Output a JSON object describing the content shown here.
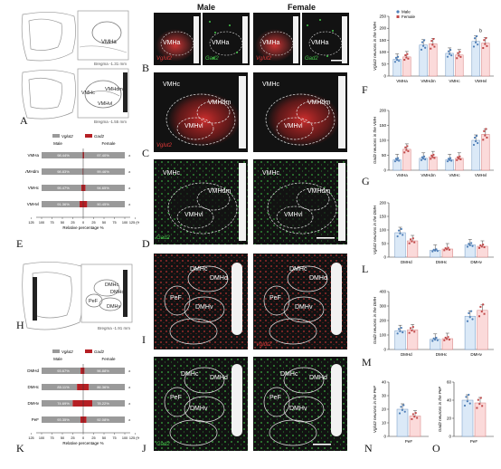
{
  "column_titles": {
    "male": "Male",
    "female": "Female"
  },
  "panel_letters": [
    "A",
    "B",
    "C",
    "D",
    "E",
    "F",
    "G",
    "H",
    "I",
    "J",
    "K",
    "L",
    "M",
    "N",
    "O"
  ],
  "panel_A": {
    "top": {
      "region": "VMHa",
      "bregma": "Bregma -1.31 mm"
    },
    "bottom": {
      "regions": [
        "VMHc",
        "VMHdm",
        "VMHvl"
      ],
      "bregma": "Bregma -1.55 mm"
    }
  },
  "panel_B": {
    "images": [
      {
        "region": "VMHa",
        "marker": "Vglut2",
        "color": "#e23a3a"
      },
      {
        "region": "VMHa",
        "marker": "Gad2",
        "color": "#44c84a"
      },
      {
        "region": "VMHa",
        "marker": "Vglut2",
        "color": "#e23a3a"
      },
      {
        "region": "VMHa",
        "marker": "Gad2",
        "color": "#44c84a"
      }
    ]
  },
  "panel_C": {
    "regions": [
      "VMHc",
      "VMHdm",
      "VMHvl"
    ],
    "marker": "Vglut2"
  },
  "panel_D": {
    "regions": [
      "VMHc",
      "VMHdm",
      "VMHvl"
    ],
    "marker": "Gad2"
  },
  "panel_E": {
    "legend": [
      {
        "label": "Vglut2",
        "color": "#9a9a9a"
      },
      {
        "label": "Gad2",
        "color": "#b51f24"
      }
    ],
    "side_labels": {
      "left": "Male",
      "right": "Female"
    },
    "rows": [
      {
        "region": "VMHa",
        "male": "98.44%",
        "female": "97.40%"
      },
      {
        "region": "VMHdm",
        "male": "98.83%",
        "female": "99.46%"
      },
      {
        "region": "VMHc",
        "male": "95.47%",
        "female": "94.65%"
      },
      {
        "region": "VMHvl",
        "male": "91.36%",
        "female": "90.45%"
      }
    ],
    "ticks": [
      "125",
      "100",
      "75",
      "50",
      "25",
      "0",
      "25",
      "50",
      "75",
      "100",
      "125 (%)"
    ],
    "xlabel": "Relative percentage %"
  },
  "panel_H": {
    "regions": [
      "DMHc",
      "DMHd",
      "PeF",
      "DMHv"
    ],
    "bregma": "Bregma -1.91 mm"
  },
  "panel_I": {
    "regions": [
      "DMHc",
      "DMHd",
      "PeF",
      "DMHv"
    ],
    "marker": "Vglut2"
  },
  "panel_J": {
    "regions": [
      "DMHc",
      "DMHd",
      "PeF",
      "DMHv"
    ],
    "marker": "Gad2"
  },
  "panel_K": {
    "legend": [
      {
        "label": "Vglut2",
        "color": "#9a9a9a"
      },
      {
        "label": "Gad2",
        "color": "#b51f24"
      }
    ],
    "side_labels": {
      "left": "Male",
      "right": "Female"
    },
    "rows": [
      {
        "region": "DMHd",
        "male": "93.67%",
        "female": "96.88%"
      },
      {
        "region": "DMHc",
        "male": "85.11%",
        "female": "86.36%"
      },
      {
        "region": "DMHv",
        "male": "74.69%",
        "female": "78.22%"
      },
      {
        "region": "PeF",
        "male": "93.35%",
        "female": "92.08%"
      }
    ],
    "ticks": [
      "125",
      "100",
      "75",
      "50",
      "25",
      "0",
      "25",
      "50",
      "75",
      "100",
      "125 (%)"
    ],
    "xlabel": "Relative percentage %"
  },
  "chart_data": [
    {
      "panel": "F",
      "type": "bar",
      "ylabel": "Vglut2 neurons in the VMH",
      "ylim": [
        0,
        250
      ],
      "yticks": [
        "0",
        "50",
        "100",
        "150",
        "200",
        "250"
      ],
      "categories": [
        "VMHa",
        "VMHdm",
        "VMHc",
        "VMHvl"
      ],
      "legend": [
        "Male",
        "Female"
      ],
      "series": [
        {
          "name": "Male",
          "values": [
            70,
            130,
            95,
            145
          ],
          "color": "#dbe9f7"
        },
        {
          "name": "Female",
          "values": [
            80,
            135,
            88,
            138
          ],
          "color": "#fbdada"
        }
      ],
      "annotations": [
        {
          "category": "VMHvl",
          "text": "b"
        }
      ]
    },
    {
      "panel": "G",
      "type": "bar",
      "ylabel": "Gad2 neurons in the VMH",
      "ylim": [
        0,
        200
      ],
      "yticks": [
        "0",
        "50",
        "100",
        "150",
        "200"
      ],
      "categories": [
        "VMHa",
        "VMHdm",
        "VMHc",
        "VMHvl"
      ],
      "series": [
        {
          "name": "Male",
          "values": [
            35,
            40,
            35,
            100
          ],
          "color": "#dbe9f7"
        },
        {
          "name": "Female",
          "values": [
            70,
            45,
            40,
            120
          ],
          "color": "#fbdada"
        }
      ]
    },
    {
      "panel": "L",
      "type": "bar",
      "ylabel": "Vglut2 neurons in the DMH",
      "ylim": [
        0,
        200
      ],
      "yticks": [
        "0",
        "50",
        "100",
        "150",
        "200"
      ],
      "categories": [
        "DMHd",
        "DMHc",
        "DMHv"
      ],
      "series": [
        {
          "name": "Male",
          "values": [
            90,
            25,
            45
          ],
          "color": "#dbe9f7"
        },
        {
          "name": "Female",
          "values": [
            60,
            30,
            40
          ],
          "color": "#fbdada"
        }
      ]
    },
    {
      "panel": "M",
      "type": "bar",
      "ylabel": "Gad2 neurons in the DMH",
      "ylim": [
        0,
        400
      ],
      "yticks": [
        "0",
        "100",
        "200",
        "300",
        "400"
      ],
      "categories": [
        "DMHd",
        "DMHc",
        "DMHv"
      ],
      "series": [
        {
          "name": "Male",
          "values": [
            130,
            70,
            230
          ],
          "color": "#dbe9f7"
        },
        {
          "name": "Female",
          "values": [
            135,
            75,
            270
          ],
          "color": "#fbdada"
        }
      ]
    },
    {
      "panel": "N",
      "type": "bar",
      "ylabel": "Vglut2 neurons in the PeF",
      "ylim": [
        0,
        40
      ],
      "yticks": [
        "0",
        "10",
        "20",
        "30",
        "40"
      ],
      "categories": [
        "PeF"
      ],
      "series": [
        {
          "name": "Male",
          "values": [
            20
          ],
          "color": "#dbe9f7"
        },
        {
          "name": "Female",
          "values": [
            15
          ],
          "color": "#fbdada"
        }
      ]
    },
    {
      "panel": "O",
      "type": "bar",
      "ylabel": "Gad2 neurons in the PeF",
      "ylim": [
        0,
        60
      ],
      "yticks": [
        "0",
        "20",
        "40",
        "60"
      ],
      "categories": [
        "PeF"
      ],
      "series": [
        {
          "name": "Male",
          "values": [
            40
          ],
          "color": "#dbe9f7"
        },
        {
          "name": "Female",
          "values": [
            37
          ],
          "color": "#fbdada"
        }
      ]
    }
  ]
}
